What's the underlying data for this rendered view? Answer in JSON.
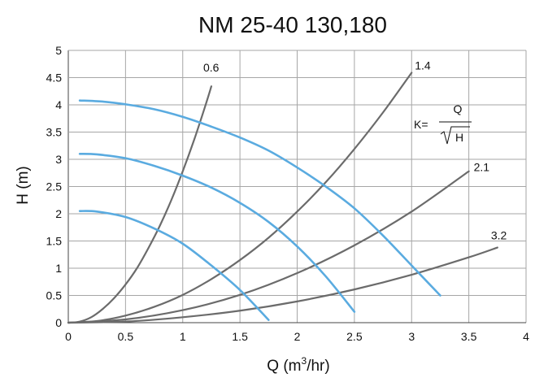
{
  "chart_data": {
    "type": "line",
    "title": "NM 25-40 130,180",
    "xlabel_prefix": "Q (m",
    "xlabel_sup": "3",
    "xlabel_suffix": "/hr)",
    "ylabel": "H (m)",
    "xlim": [
      0,
      4
    ],
    "ylim": [
      0,
      5
    ],
    "x_ticks": [
      "0",
      "0.5",
      "1",
      "1.5",
      "2",
      "2.5",
      "3",
      "3.5",
      "4"
    ],
    "y_ticks": [
      "0",
      "0.5",
      "1",
      "1.5",
      "2",
      "2.5",
      "3",
      "3.5",
      "4",
      "4.5",
      "5"
    ],
    "grid": true,
    "colors": {
      "pump": "#5aabe0",
      "system": "#6b6b6b",
      "grid": "#a6a6a6",
      "axis": "#444444"
    },
    "series": [
      {
        "name": "pump-curve-high",
        "kind": "pump",
        "x": [
          0.1,
          0.3,
          0.5,
          0.75,
          1.0,
          1.25,
          1.5,
          1.75,
          2.0,
          2.25,
          2.5,
          2.75,
          3.0,
          3.25
        ],
        "y": [
          4.08,
          4.06,
          4.01,
          3.92,
          3.78,
          3.6,
          3.4,
          3.16,
          2.85,
          2.5,
          2.1,
          1.6,
          1.05,
          0.5
        ]
      },
      {
        "name": "pump-curve-mid",
        "kind": "pump",
        "x": [
          0.1,
          0.25,
          0.5,
          0.75,
          1.0,
          1.25,
          1.5,
          1.75,
          2.0,
          2.25,
          2.5
        ],
        "y": [
          3.1,
          3.09,
          3.02,
          2.88,
          2.7,
          2.48,
          2.2,
          1.85,
          1.4,
          0.85,
          0.2
        ]
      },
      {
        "name": "pump-curve-low",
        "kind": "pump",
        "x": [
          0.1,
          0.25,
          0.5,
          0.75,
          1.0,
          1.25,
          1.5,
          1.75
        ],
        "y": [
          2.05,
          2.04,
          1.94,
          1.73,
          1.45,
          1.05,
          0.6,
          0.05
        ]
      },
      {
        "name": "system-curve-0.6",
        "kind": "system",
        "label": "0.6",
        "x": [
          0,
          0.1,
          0.2,
          0.3,
          0.4,
          0.5,
          0.6,
          0.7,
          0.8,
          0.9,
          1.0,
          1.1,
          1.2,
          1.25
        ],
        "y": [
          0,
          0.02,
          0.1,
          0.25,
          0.45,
          0.7,
          1.0,
          1.37,
          1.78,
          2.25,
          2.78,
          3.36,
          4.0,
          4.34
        ]
      },
      {
        "name": "system-curve-1.4",
        "kind": "system",
        "label": "1.4",
        "x": [
          0,
          0.25,
          0.5,
          0.75,
          1.0,
          1.25,
          1.5,
          1.75,
          2.0,
          2.25,
          2.5,
          2.75,
          3.0
        ],
        "y": [
          0,
          0.03,
          0.13,
          0.29,
          0.51,
          0.8,
          1.15,
          1.56,
          2.04,
          2.58,
          3.19,
          3.86,
          4.59
        ]
      },
      {
        "name": "system-curve-2.1",
        "kind": "system",
        "label": "2.1",
        "x": [
          0,
          0.5,
          1.0,
          1.5,
          2.0,
          2.5,
          3.0,
          3.5
        ],
        "y": [
          0,
          0.06,
          0.23,
          0.51,
          0.91,
          1.42,
          2.04,
          2.78
        ]
      },
      {
        "name": "system-curve-3.2",
        "kind": "system",
        "label": "3.2",
        "x": [
          0,
          0.5,
          1.0,
          1.5,
          2.0,
          2.5,
          3.0,
          3.5,
          3.75
        ],
        "y": [
          0,
          0.02,
          0.1,
          0.22,
          0.39,
          0.61,
          0.88,
          1.2,
          1.38
        ]
      }
    ],
    "annotations": {
      "formula_lhs": "K=",
      "formula_numerator": "Q",
      "formula_denominator": "H"
    }
  }
}
